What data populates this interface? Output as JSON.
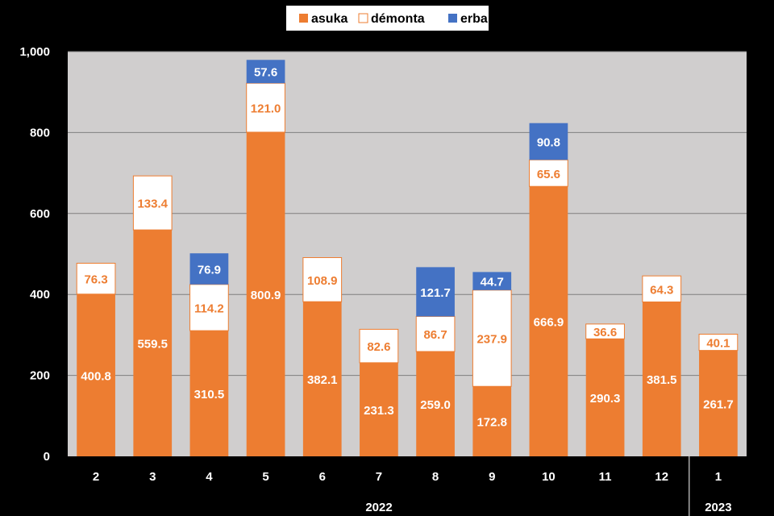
{
  "chart_data": {
    "type": "bar",
    "stacked": true,
    "categories": [
      "2",
      "3",
      "4",
      "5",
      "6",
      "7",
      "8",
      "9",
      "10",
      "11",
      "12",
      "1"
    ],
    "year_groups": [
      {
        "label": "2022",
        "from": 0,
        "to": 10
      },
      {
        "label": "2023",
        "from": 11,
        "to": 11
      }
    ],
    "series": [
      {
        "name": "asuka",
        "color": "#ED7D31",
        "values": [
          400.8,
          559.5,
          310.5,
          800.9,
          382.1,
          231.3,
          259.0,
          172.8,
          666.9,
          290.3,
          381.5,
          261.7
        ]
      },
      {
        "name": "démonta",
        "color": "#FFFFFF",
        "values": [
          76.3,
          133.4,
          114.2,
          121.0,
          108.9,
          82.6,
          86.7,
          237.9,
          65.6,
          36.6,
          64.3,
          40.1
        ]
      },
      {
        "name": "erba",
        "color": "#4472C4",
        "values": [
          null,
          null,
          76.9,
          57.6,
          null,
          null,
          121.7,
          44.7,
          90.8,
          null,
          null,
          null
        ]
      }
    ],
    "ylim": [
      0,
      1000
    ],
    "yticks": [
      0,
      200,
      400,
      600,
      800,
      1000
    ],
    "ytick_labels": [
      "0",
      "200",
      "400",
      "600",
      "800",
      "1,000"
    ],
    "grid": true,
    "legend_position": "top-center",
    "title": "",
    "xlabel": "",
    "ylabel": ""
  }
}
